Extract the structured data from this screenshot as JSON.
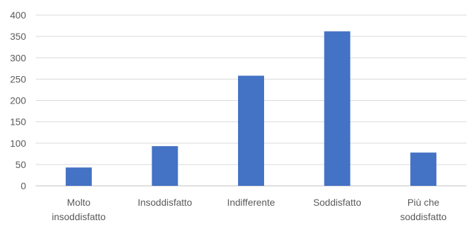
{
  "chart_data": {
    "type": "bar",
    "title": "",
    "xlabel": "",
    "ylabel": "",
    "ylim": [
      0,
      400
    ],
    "y_ticks": [
      0,
      50,
      100,
      150,
      200,
      250,
      300,
      350,
      400
    ],
    "grid": true,
    "categories": [
      [
        "Molto",
        "insoddisfatto"
      ],
      [
        "Insoddisfatto"
      ],
      [
        "Indifferente"
      ],
      [
        "Soddisfatto"
      ],
      [
        "Più che",
        "soddisfatto"
      ]
    ],
    "values": [
      43,
      93,
      258,
      362,
      78
    ],
    "colors": {
      "bar": "#4472C4",
      "grid": "#D9D9D9",
      "text": "#595959"
    }
  }
}
